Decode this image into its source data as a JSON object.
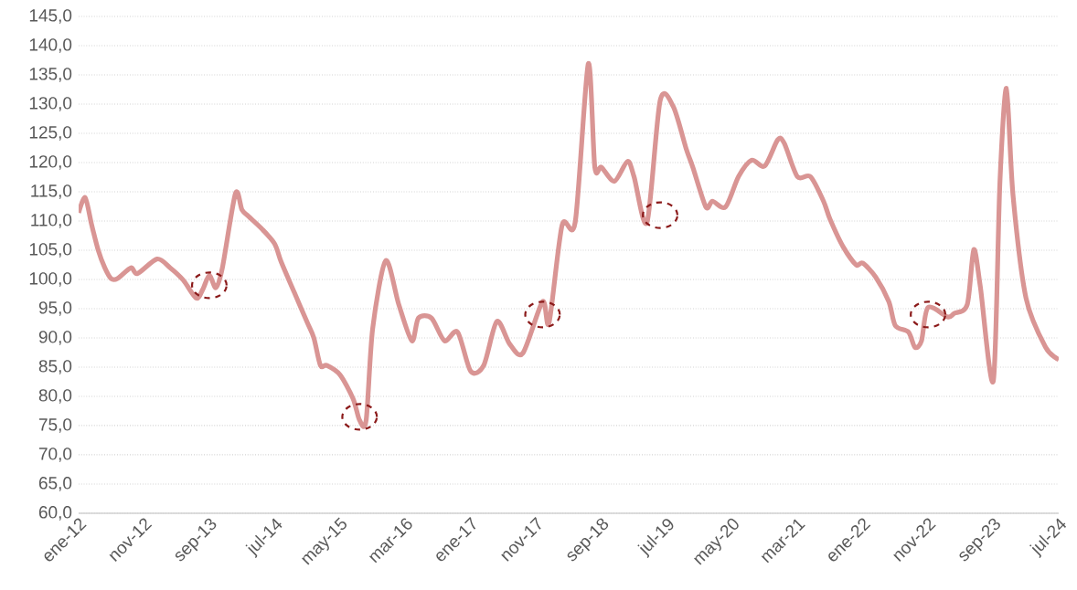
{
  "chart_data": {
    "type": "line",
    "x": [
      "2012-01",
      "2012-02",
      "2012-03",
      "2012-04",
      "2012-05",
      "2012-06",
      "2012-07",
      "2012-09",
      "2012-10",
      "2013-01",
      "2013-03",
      "2013-05",
      "2013-07",
      "2013-08",
      "2013-09",
      "2013-10",
      "2013-11",
      "2014-01",
      "2014-02",
      "2014-03",
      "2014-05",
      "2014-07",
      "2014-08",
      "2014-10",
      "2014-12",
      "2015-01",
      "2015-02",
      "2015-03",
      "2015-05",
      "2015-07",
      "2015-08",
      "2015-09",
      "2015-10",
      "2015-12",
      "2016-02",
      "2016-04",
      "2016-05",
      "2016-07",
      "2016-09",
      "2016-11",
      "2017-01",
      "2017-03",
      "2017-05",
      "2017-07",
      "2017-09",
      "2017-12",
      "2018-01",
      "2018-03",
      "2018-05",
      "2018-07",
      "2018-08",
      "2018-09",
      "2018-11",
      "2019-01",
      "2019-02",
      "2019-04",
      "2019-06",
      "2019-08",
      "2019-10",
      "2019-11",
      "2020-01",
      "2020-02",
      "2020-04",
      "2020-06",
      "2020-08",
      "2020-10",
      "2020-12",
      "2021-01",
      "2021-03",
      "2021-05",
      "2021-07",
      "2021-08",
      "2021-10",
      "2021-12",
      "2022-01",
      "2022-03",
      "2022-05",
      "2022-06",
      "2022-08",
      "2022-09",
      "2022-10",
      "2022-11",
      "2023-02",
      "2023-03",
      "2023-05",
      "2023-06",
      "2023-07",
      "2023-09",
      "2023-10",
      "2023-11",
      "2023-12",
      "2024-02",
      "2024-05",
      "2024-07"
    ],
    "series": [
      {
        "color": "#d99594",
        "values": [
          111.4,
          114,
          109.3,
          105,
          102,
          100.1,
          100.2,
          102,
          101,
          103.5,
          102,
          99.9,
          96.8,
          98.3,
          100.7,
          98.6,
          102,
          114.7,
          111.9,
          110.8,
          108.7,
          106.1,
          103,
          97.8,
          92.6,
          90,
          85.3,
          85.3,
          83.7,
          79.6,
          75.9,
          75.9,
          91.6,
          103.2,
          95.7,
          89.5,
          93.4,
          93.4,
          89.5,
          91,
          84.3,
          85.3,
          92.8,
          88.9,
          87.4,
          96.2,
          92.6,
          109.3,
          109.8,
          136.9,
          119.2,
          119.2,
          116.8,
          120.2,
          117.6,
          109.8,
          130.6,
          129.6,
          122.3,
          119.2,
          112.4,
          113.4,
          112.4,
          117.6,
          120.4,
          119.4,
          123.9,
          123.3,
          117.6,
          117.6,
          113.4,
          110.3,
          105.6,
          102.5,
          102.8,
          100.4,
          96.2,
          92.1,
          91,
          88.4,
          89.5,
          95.2,
          93.6,
          94.2,
          95.7,
          105.1,
          98.8,
          82.7,
          116.6,
          132.7,
          114.5,
          96.8,
          88.4,
          86.3
        ]
      },
      {
        "type": "scatter",
        "color": "#8b1a1a",
        "marker": "circle",
        "line_style": "dashed",
        "x": [
          "2013-09",
          "2015-08",
          "2017-12",
          "2019-06",
          "2022-11"
        ],
        "values": [
          99,
          76.5,
          94,
          111,
          94
        ]
      }
    ],
    "xlim": [
      "2012-01",
      "2024-07"
    ],
    "xticks": [
      {
        "value": "2012-01",
        "label": "ene-12"
      },
      {
        "value": "2012-11",
        "label": "nov-12"
      },
      {
        "value": "2013-09",
        "label": "sep-13"
      },
      {
        "value": "2014-07",
        "label": "jul-14"
      },
      {
        "value": "2015-05",
        "label": "may-15"
      },
      {
        "value": "2016-03",
        "label": "mar-16"
      },
      {
        "value": "2017-01",
        "label": "ene-17"
      },
      {
        "value": "2017-11",
        "label": "nov-17"
      },
      {
        "value": "2018-09",
        "label": "sep-18"
      },
      {
        "value": "2019-07",
        "label": "jul-19"
      },
      {
        "value": "2020-05",
        "label": "may-20"
      },
      {
        "value": "2021-03",
        "label": "mar-21"
      },
      {
        "value": "2022-01",
        "label": "ene-22"
      },
      {
        "value": "2022-11",
        "label": "nov-22"
      },
      {
        "value": "2023-09",
        "label": "sep-23"
      },
      {
        "value": "2024-07",
        "label": "jul-24"
      }
    ],
    "ylim": [
      60,
      145
    ],
    "yticks": [
      {
        "value": 60,
        "label": "60,0"
      },
      {
        "value": 65,
        "label": "65,0"
      },
      {
        "value": 70,
        "label": "70,0"
      },
      {
        "value": 75,
        "label": "75,0"
      },
      {
        "value": 80,
        "label": "80,0"
      },
      {
        "value": 85,
        "label": "85,0"
      },
      {
        "value": 90,
        "label": "90,0"
      },
      {
        "value": 95,
        "label": "95,0"
      },
      {
        "value": 100,
        "label": "100,0"
      },
      {
        "value": 105,
        "label": "105,0"
      },
      {
        "value": 110,
        "label": "110,0"
      },
      {
        "value": 115,
        "label": "115,0"
      },
      {
        "value": 120,
        "label": "120,0"
      },
      {
        "value": 125,
        "label": "125,0"
      },
      {
        "value": 130,
        "label": "130,0"
      },
      {
        "value": 135,
        "label": "135,0"
      },
      {
        "value": 140,
        "label": "140,0"
      },
      {
        "value": 145,
        "label": "145,0"
      }
    ],
    "grid": "y"
  }
}
